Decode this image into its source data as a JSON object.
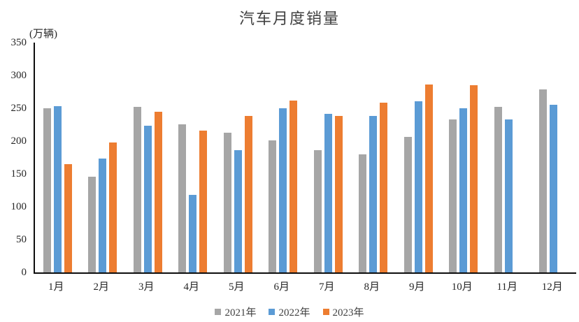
{
  "chart": {
    "title": "汽车月度销量",
    "unit_label": "(万辆)"
  },
  "chart_data": {
    "type": "bar",
    "title": "汽车月度销量",
    "ylabel": "(万辆)",
    "xlabel": "",
    "categories": [
      "1月",
      "2月",
      "3月",
      "4月",
      "5月",
      "6月",
      "7月",
      "8月",
      "9月",
      "10月",
      "11月",
      "12月"
    ],
    "series": [
      {
        "name": "2021年",
        "color": "#A6A6A6",
        "values": [
          250.3,
          145.5,
          252.6,
          225.2,
          212.8,
          201.5,
          186.4,
          179.9,
          206.7,
          233.3,
          252.2,
          278.6
        ]
      },
      {
        "name": "2022年",
        "color": "#5B9BD5",
        "values": [
          253.1,
          173.7,
          223.4,
          118.1,
          186.2,
          250.2,
          242.0,
          238.3,
          261.0,
          250.5,
          232.8,
          255.6
        ]
      },
      {
        "name": "2023年",
        "color": "#ED7D31",
        "values": [
          164.9,
          197.6,
          245.1,
          215.9,
          238.2,
          262.2,
          238.7,
          258.2,
          285.8,
          285.3,
          null,
          null
        ]
      }
    ],
    "ylim": [
      0,
      350
    ],
    "y_ticks": [
      0,
      50,
      100,
      150,
      200,
      250,
      300,
      350
    ],
    "grid": false,
    "legend_position": "bottom",
    "axis_color": "#0d0d0d",
    "background": "#ffffff"
  }
}
